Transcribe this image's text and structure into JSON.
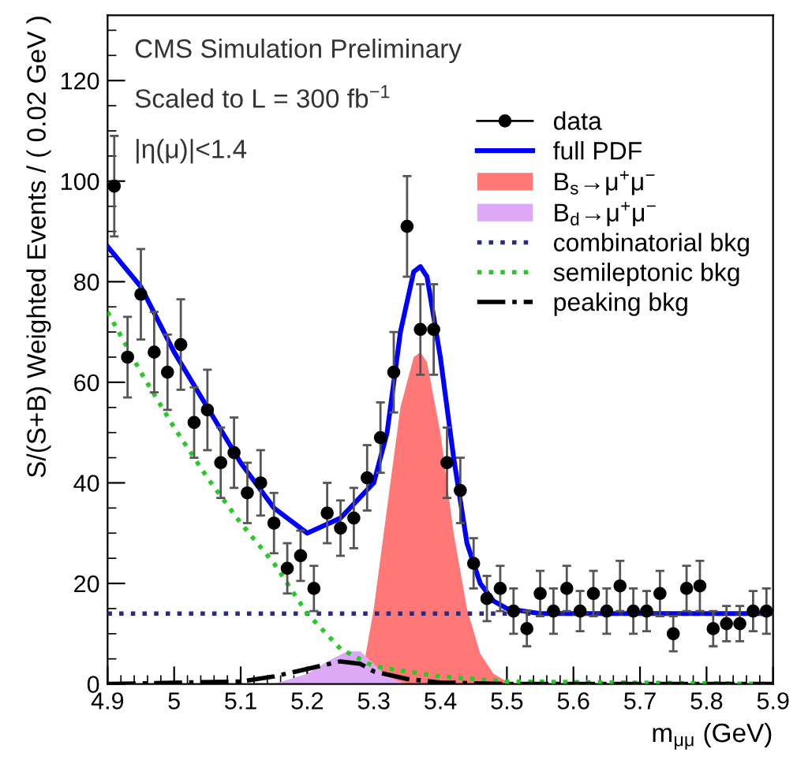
{
  "chart_data": {
    "type": "scatter",
    "xlabel": "m$_{μμ}$ (GeV)",
    "ylabel": "S/(S+B) Weighted Events / ( 0.02 GeV )",
    "annotations": [
      "CMS Simulation Preliminary",
      "Scaled to L = 300 fb$^{−1}$",
      "|η(μ)|<1.4"
    ],
    "xlim": [
      4.9,
      5.9
    ],
    "xticks": [
      4.9,
      5,
      5.1,
      5.2,
      5.3,
      5.4,
      5.5,
      5.6,
      5.7,
      5.8,
      5.9
    ],
    "ylim": [
      0,
      133
    ],
    "yticks": [
      0,
      20,
      40,
      60,
      80,
      100,
      120
    ],
    "legend": "top right",
    "grid": false,
    "series": [
      {
        "name": "data",
        "color": "#000000",
        "marker": "circle",
        "x": [
          4.91,
          4.93,
          4.95,
          4.97,
          4.99,
          5.01,
          5.03,
          5.05,
          5.07,
          5.09,
          5.11,
          5.13,
          5.15,
          5.17,
          5.19,
          5.21,
          5.23,
          5.25,
          5.27,
          5.29,
          5.31,
          5.33,
          5.35,
          5.37,
          5.39,
          5.41,
          5.43,
          5.45,
          5.47,
          5.49,
          5.51,
          5.53,
          5.55,
          5.57,
          5.59,
          5.61,
          5.63,
          5.65,
          5.67,
          5.69,
          5.71,
          5.73,
          5.75,
          5.77,
          5.79,
          5.81,
          5.83,
          5.85,
          5.87,
          5.89
        ],
        "values": [
          99,
          65,
          77.5,
          66,
          62,
          67.5,
          52,
          54.5,
          44,
          46,
          38,
          40,
          32,
          23,
          25.5,
          19,
          34,
          31,
          33,
          41,
          49,
          62,
          91,
          70.5,
          70.5,
          44,
          38.5,
          24,
          17,
          19,
          14.5,
          11,
          18,
          14.5,
          19,
          14.5,
          18,
          14.5,
          19.5,
          14.5,
          14.5,
          18,
          10,
          19,
          19.5,
          11,
          12,
          12,
          14.5,
          14.5
        ],
        "errors": [
          10,
          8,
          9,
          8,
          7.5,
          9,
          7,
          8,
          7,
          7,
          6,
          6.5,
          6,
          5,
          5,
          4.5,
          6,
          5.5,
          6,
          6.5,
          7,
          8,
          10,
          9,
          9,
          7,
          6.5,
          5,
          4.5,
          4.5,
          4.5,
          3.5,
          4.5,
          4.5,
          4.5,
          4,
          4.5,
          4.5,
          5,
          4.5,
          4,
          4.5,
          3.5,
          4.5,
          5,
          3.5,
          3.5,
          3.5,
          4,
          4.5
        ]
      },
      {
        "name": "full PDF",
        "type": "line",
        "color": "#0000ff",
        "line_style": "solid",
        "x": [
          4.9,
          4.95,
          5.0,
          5.05,
          5.1,
          5.15,
          5.2,
          5.25,
          5.3,
          5.32,
          5.34,
          5.36,
          5.37,
          5.38,
          5.4,
          5.42,
          5.44,
          5.46,
          5.48,
          5.5,
          5.55,
          5.9
        ],
        "values": [
          87,
          79,
          66,
          55,
          44,
          35,
          30,
          33,
          40,
          50,
          70,
          82,
          83,
          81,
          65,
          45,
          28,
          20,
          16.5,
          15,
          14,
          14
        ]
      },
      {
        "name": "B$_{s}$→μ$^{+}$μ$^{−}$",
        "type": "area",
        "color": "#ff7777",
        "x": [
          5.28,
          5.3,
          5.32,
          5.34,
          5.36,
          5.37,
          5.38,
          5.4,
          5.42,
          5.44,
          5.46,
          5.48,
          5.5,
          5.52
        ],
        "values": [
          0,
          15,
          35,
          55,
          65,
          66,
          64,
          50,
          30,
          15,
          6,
          2,
          0.5,
          0
        ]
      },
      {
        "name": "B$_{d}$→μ$^{+}$μ$^{−}$",
        "type": "area",
        "color": "#dda8f5",
        "x": [
          5.15,
          5.2,
          5.23,
          5.26,
          5.28,
          5.3,
          5.32,
          5.35
        ],
        "values": [
          0,
          2,
          4.5,
          6.5,
          6.5,
          4,
          1.5,
          0
        ]
      },
      {
        "name": "combinatorial bkg",
        "type": "line",
        "color": "#2a2a80",
        "line_style": "dotted",
        "x": [
          4.9,
          5.9
        ],
        "values": [
          14,
          14
        ]
      },
      {
        "name": "semileptonic bkg",
        "type": "line",
        "color": "#22cc22",
        "line_style": "dotted",
        "x": [
          4.9,
          4.95,
          5.0,
          5.05,
          5.1,
          5.15,
          5.2,
          5.25,
          5.3,
          5.35,
          5.4,
          5.5,
          5.9
        ],
        "values": [
          74,
          62,
          51,
          41,
          32,
          24,
          14,
          7,
          3.5,
          2.5,
          1.5,
          0.5,
          0
        ]
      },
      {
        "name": "peaking bkg",
        "type": "line",
        "color": "#000000",
        "line_style": "dashdot",
        "x": [
          4.9,
          5.1,
          5.15,
          5.2,
          5.25,
          5.28,
          5.3,
          5.35,
          5.4,
          5.5,
          5.9
        ],
        "values": [
          0,
          0.5,
          1.5,
          3,
          4.5,
          4,
          2.5,
          1,
          0.3,
          0,
          0
        ]
      }
    ]
  }
}
